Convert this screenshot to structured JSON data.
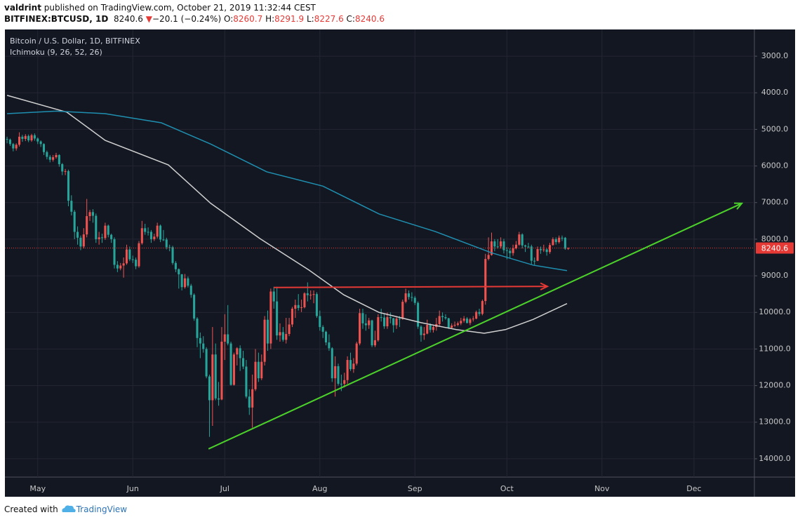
{
  "header": {
    "author": "valdrint",
    "published": "published on TradingView.com, October 21, 2019 11:32:44 CEST",
    "symbol": "BITFINEX:BTCUSD, 1D",
    "last": "8240.6",
    "arrow": "▼",
    "change": "−20.1 (−0.24%)",
    "ohlc": [
      {
        "key": "O:",
        "value": "8260.7"
      },
      {
        "key": "H:",
        "value": "8291.9"
      },
      {
        "key": "L:",
        "value": "8227.6"
      },
      {
        "key": "C:",
        "value": "8240.6"
      }
    ]
  },
  "chart_data": {
    "type": "candlestick",
    "title": "Bitcoin / U.S. Dollar, 1D, BITFINEX",
    "subtitle": "Ichimoku (9, 26, 52, 26)",
    "ylim": [
      14500,
      2270
    ],
    "yticks": [
      {
        "value": 3000,
        "label": "3000.0"
      },
      {
        "value": 4000,
        "label": "4000.0"
      },
      {
        "value": 5000,
        "label": "5000.0"
      },
      {
        "value": 6000,
        "label": "6000.0"
      },
      {
        "value": 7000,
        "label": "7000.0"
      },
      {
        "value": 8000,
        "label": "8000.0"
      },
      {
        "value": 9000,
        "label": "9000.0"
      },
      {
        "value": 10000,
        "label": "10000.0"
      },
      {
        "value": 11000,
        "label": "11000.0"
      },
      {
        "value": 12000,
        "label": "12000.0"
      },
      {
        "value": 13000,
        "label": "13000.0"
      },
      {
        "value": 14000,
        "label": "14000.0"
      }
    ],
    "xlim": [
      -0.7,
      243.7
    ],
    "xticks": [
      {
        "value": 10,
        "label": "May"
      },
      {
        "value": 41,
        "label": "Jun"
      },
      {
        "value": 71,
        "label": "Jul"
      },
      {
        "value": 102,
        "label": "Aug"
      },
      {
        "value": 133,
        "label": "Sep"
      },
      {
        "value": 163,
        "label": "Oct"
      },
      {
        "value": 194,
        "label": "Nov"
      },
      {
        "value": 224,
        "label": "Dec"
      }
    ],
    "grid": true,
    "up_color": "#26a69a",
    "down_color": "#ef5350",
    "candles": [
      [
        5260,
        5380,
        5200,
        5280
      ],
      [
        5280,
        5450,
        5250,
        5400
      ],
      [
        5400,
        5600,
        5370,
        5520
      ],
      [
        5520,
        5580,
        5380,
        5420
      ],
      [
        5420,
        5470,
        5080,
        5200
      ],
      [
        5200,
        5340,
        5150,
        5260
      ],
      [
        5260,
        5320,
        5130,
        5180
      ],
      [
        5180,
        5350,
        5140,
        5300
      ],
      [
        5300,
        5340,
        5120,
        5160
      ],
      [
        5160,
        5310,
        5110,
        5250
      ],
      [
        5250,
        5400,
        5220,
        5330
      ],
      [
        5330,
        5480,
        5300,
        5400
      ],
      [
        5400,
        5700,
        5380,
        5620
      ],
      [
        5620,
        5820,
        5580,
        5750
      ],
      [
        5750,
        5900,
        5700,
        5830
      ],
      [
        5830,
        5880,
        5700,
        5760
      ],
      [
        5760,
        5800,
        5640,
        5700
      ],
      [
        5700,
        6020,
        5680,
        5950
      ],
      [
        5950,
        6250,
        5920,
        6150
      ],
      [
        6150,
        6250,
        6080,
        6140
      ],
      [
        6140,
        7100,
        6100,
        6950
      ],
      [
        6950,
        7350,
        6800,
        7250
      ],
      [
        7250,
        8000,
        7200,
        7800
      ],
      [
        7800,
        8150,
        7650,
        7960
      ],
      [
        7960,
        8300,
        7900,
        8200
      ],
      [
        8200,
        8250,
        7700,
        7870
      ],
      [
        7870,
        7950,
        6900,
        7370
      ],
      [
        7370,
        7500,
        7200,
        7260
      ],
      [
        7260,
        7550,
        7180,
        7360
      ],
      [
        7360,
        8100,
        7300,
        8000
      ],
      [
        8000,
        8150,
        7800,
        7950
      ],
      [
        7950,
        8100,
        7850,
        7970
      ],
      [
        7970,
        8020,
        7550,
        7630
      ],
      [
        7630,
        7950,
        7600,
        7880
      ],
      [
        7880,
        8100,
        7850,
        8000
      ],
      [
        8000,
        8800,
        7950,
        8700
      ],
      [
        8700,
        8900,
        8600,
        8800
      ],
      [
        8800,
        8850,
        8650,
        8720
      ],
      [
        8720,
        9050,
        8500,
        8660
      ],
      [
        8660,
        8700,
        8150,
        8280
      ],
      [
        8280,
        8600,
        8200,
        8550
      ],
      [
        8550,
        8650,
        8450,
        8560
      ],
      [
        8560,
        8820,
        8500,
        8740
      ],
      [
        8740,
        8780,
        8050,
        8110
      ],
      [
        8110,
        8150,
        7500,
        7700
      ],
      [
        7700,
        7880,
        7580,
        7800
      ],
      [
        7800,
        7900,
        7680,
        7800
      ],
      [
        7800,
        8100,
        7750,
        8000
      ],
      [
        8000,
        8050,
        7850,
        7930
      ],
      [
        7930,
        7980,
        7550,
        7630
      ],
      [
        7630,
        8080,
        7600,
        8010
      ],
      [
        8010,
        8050,
        7750,
        8010
      ],
      [
        8010,
        8280,
        7960,
        8220
      ],
      [
        8220,
        8330,
        8150,
        8220
      ],
      [
        8220,
        8700,
        8180,
        8650
      ],
      [
        8650,
        8900,
        8600,
        8820
      ],
      [
        8820,
        9350,
        8800,
        8960
      ],
      [
        8960,
        9400,
        8950,
        9310
      ],
      [
        9310,
        9350,
        8950,
        9070
      ],
      [
        9070,
        9320,
        9020,
        9270
      ],
      [
        9270,
        9600,
        9220,
        9520
      ],
      [
        9520,
        10230,
        9480,
        10170
      ],
      [
        10170,
        10950,
        10130,
        10700
      ],
      [
        10700,
        11250,
        10550,
        10850
      ],
      [
        10850,
        11100,
        10650,
        11000
      ],
      [
        11000,
        11800,
        10950,
        11750
      ],
      [
        11750,
        13400,
        11700,
        12400
      ],
      [
        12400,
        13100,
        10400,
        11150
      ],
      [
        11150,
        12400,
        10850,
        12350
      ],
      [
        12350,
        12550,
        11900,
        12380
      ],
      [
        12380,
        12400,
        10400,
        10800
      ],
      [
        10800,
        11300,
        10050,
        10600
      ],
      [
        10600,
        10900,
        9800,
        10850
      ],
      [
        10850,
        12000,
        10800,
        11980
      ],
      [
        11980,
        12000,
        11100,
        11150
      ],
      [
        11150,
        11450,
        10950,
        10980
      ],
      [
        10980,
        11600,
        10900,
        11250
      ],
      [
        11250,
        11550,
        11050,
        11480
      ],
      [
        11480,
        12350,
        11300,
        12300
      ],
      [
        12300,
        12800,
        12100,
        12600
      ],
      [
        12600,
        13150,
        11700,
        12100
      ],
      [
        12100,
        12150,
        11000,
        11350
      ],
      [
        11350,
        11900,
        11100,
        11800
      ],
      [
        11800,
        11850,
        11150,
        11350
      ],
      [
        11350,
        11450,
        10100,
        10200
      ],
      [
        10200,
        11050,
        9950,
        10850
      ],
      [
        10850,
        11000,
        9350,
        9430
      ],
      [
        9430,
        9900,
        9300,
        9700
      ],
      [
        9700,
        10750,
        9300,
        10630
      ],
      [
        10630,
        10800,
        10300,
        10540
      ],
      [
        10540,
        10800,
        10400,
        10750
      ],
      [
        10750,
        10850,
        10150,
        10590
      ],
      [
        10590,
        10650,
        10150,
        10330
      ],
      [
        10330,
        10400,
        9850,
        9900
      ],
      [
        9900,
        10150,
        9650,
        9800
      ],
      [
        9800,
        9950,
        9500,
        9880
      ],
      [
        9880,
        9990,
        9650,
        9860
      ],
      [
        9860,
        9890,
        9450,
        9480
      ],
      [
        9480,
        9700,
        9180,
        9530
      ],
      [
        9530,
        9650,
        9400,
        9520
      ],
      [
        9520,
        9750,
        9400,
        9500
      ],
      [
        9500,
        10150,
        9450,
        10100
      ],
      [
        10100,
        10500,
        9950,
        10400
      ],
      [
        10400,
        10700,
        10350,
        10530
      ],
      [
        10530,
        10900,
        10500,
        10820
      ],
      [
        10820,
        11050,
        10600,
        10980
      ],
      [
        10980,
        11900,
        10950,
        11800
      ],
      [
        11800,
        12300,
        11200,
        11470
      ],
      [
        11470,
        12000,
        11400,
        11950
      ],
      [
        11950,
        12150,
        11700,
        11950
      ],
      [
        11950,
        12050,
        11650,
        11850
      ],
      [
        11850,
        11950,
        11200,
        11300
      ],
      [
        11300,
        11600,
        11100,
        11550
      ],
      [
        11550,
        11650,
        11250,
        11400
      ],
      [
        11400,
        11450,
        10800,
        10850
      ],
      [
        10850,
        10900,
        9900,
        10020
      ],
      [
        10020,
        10450,
        9900,
        10300
      ],
      [
        10300,
        10500,
        10050,
        10350
      ],
      [
        10350,
        10450,
        10150,
        10220
      ],
      [
        10220,
        10950,
        10200,
        10900
      ],
      [
        10900,
        10950,
        10500,
        10760
      ],
      [
        10760,
        10800,
        10050,
        10130
      ],
      [
        10130,
        10250,
        9900,
        10140
      ],
      [
        10140,
        10450,
        10050,
        10380
      ],
      [
        10380,
        10450,
        10000,
        10130
      ],
      [
        10130,
        10300,
        10000,
        10160
      ],
      [
        10160,
        10550,
        10150,
        10350
      ],
      [
        10350,
        10450,
        10100,
        10170
      ],
      [
        10170,
        10400,
        10100,
        10180
      ],
      [
        10180,
        10200,
        9650,
        9710
      ],
      [
        9710,
        9750,
        9350,
        9480
      ],
      [
        9480,
        9650,
        9400,
        9580
      ],
      [
        9580,
        9700,
        9450,
        9600
      ],
      [
        9600,
        9800,
        9550,
        9740
      ],
      [
        9740,
        10450,
        9700,
        10390
      ],
      [
        10390,
        10800,
        10350,
        10620
      ],
      [
        10620,
        10750,
        10400,
        10580
      ],
      [
        10580,
        10600,
        10200,
        10340
      ],
      [
        10340,
        10550,
        10300,
        10480
      ],
      [
        10480,
        10550,
        10350,
        10400
      ],
      [
        10400,
        10500,
        10150,
        10320
      ],
      [
        10320,
        10380,
        9950,
        10100
      ],
      [
        10100,
        10250,
        10000,
        10130
      ],
      [
        10130,
        10200,
        10050,
        10160
      ],
      [
        10160,
        10450,
        10150,
        10420
      ],
      [
        10420,
        10450,
        10300,
        10360
      ],
      [
        10360,
        10400,
        10250,
        10340
      ],
      [
        10340,
        10380,
        10250,
        10300
      ],
      [
        10300,
        10350,
        10150,
        10230
      ],
      [
        10230,
        10280,
        10100,
        10170
      ],
      [
        10170,
        10300,
        10130,
        10290
      ],
      [
        10290,
        10350,
        10150,
        10190
      ],
      [
        10190,
        10250,
        10100,
        10170
      ],
      [
        10170,
        10190,
        9950,
        9990
      ],
      [
        9990,
        10100,
        9900,
        10040
      ],
      [
        10040,
        10080,
        9650,
        9690
      ],
      [
        9690,
        9790,
        8400,
        8540
      ],
      [
        8540,
        8580,
        7950,
        8430
      ],
      [
        8430,
        8450,
        7820,
        8060
      ],
      [
        8060,
        8330,
        8000,
        8200
      ],
      [
        8200,
        8260,
        8000,
        8200
      ],
      [
        8200,
        8250,
        7950,
        8060
      ],
      [
        8060,
        8390,
        7990,
        8300
      ],
      [
        8300,
        8550,
        8220,
        8320
      ],
      [
        8320,
        8520,
        8250,
        8380
      ],
      [
        8380,
        8450,
        8150,
        8250
      ],
      [
        8250,
        8280,
        8050,
        8150
      ],
      [
        8150,
        8180,
        7800,
        7870
      ],
      [
        7870,
        8250,
        7840,
        8170
      ],
      [
        8170,
        8350,
        8150,
        8200
      ],
      [
        8200,
        8250,
        8100,
        8200
      ],
      [
        8200,
        8680,
        8150,
        8590
      ],
      [
        8590,
        8700,
        8500,
        8590
      ],
      [
        8590,
        8600,
        8200,
        8270
      ],
      [
        8270,
        8400,
        8200,
        8300
      ],
      [
        8300,
        8350,
        8150,
        8280
      ],
      [
        8280,
        8450,
        8250,
        8350
      ],
      [
        8350,
        8400,
        8100,
        8160
      ],
      [
        8160,
        8180,
        7950,
        8000
      ],
      [
        8000,
        8150,
        7950,
        8080
      ],
      [
        8080,
        8120,
        7900,
        7960
      ],
      [
        7960,
        8050,
        7900,
        7960
      ],
      [
        7960,
        8290,
        7940,
        8260.7
      ],
      [
        8260.7,
        8291.9,
        8227.6,
        8240.6
      ]
    ],
    "ichimoku": [
      {
        "color": "#d0d0d0",
        "x": [
          0,
          19.5,
          32,
          52.6,
          66.4,
          82.4,
          98.4,
          109.8,
          121.3,
          135,
          146.5,
          155.6,
          162.5,
          171.6,
          182.6
        ],
        "values": [
          4070,
          4530,
          5300,
          5970,
          7020,
          7980,
          8840,
          9520,
          10000,
          10280,
          10470,
          10570,
          10470,
          10190,
          9760
        ]
      },
      {
        "color": "#1f8fb0",
        "x": [
          0,
          16,
          32,
          50.3,
          66.4,
          84.7,
          103,
          121.3,
          139.6,
          157.9,
          171.6,
          182.6
        ],
        "values": [
          4570,
          4500,
          4570,
          4820,
          5400,
          6160,
          6550,
          7310,
          7790,
          8370,
          8710,
          8860
        ]
      }
    ],
    "drawings": [
      {
        "color": "#4cd12b",
        "x": [
          65.7,
          239.6
        ],
        "values": [
          13730,
          7020
        ]
      },
      {
        "color": "#e53935",
        "x": [
          87,
          176.2
        ],
        "values": [
          9320,
          9290
        ]
      }
    ],
    "last_price": {
      "value": 8240.6,
      "label": "8240.6",
      "color": "#e53935"
    }
  },
  "footer": {
    "created": "Created with",
    "brand": "TradingView"
  }
}
